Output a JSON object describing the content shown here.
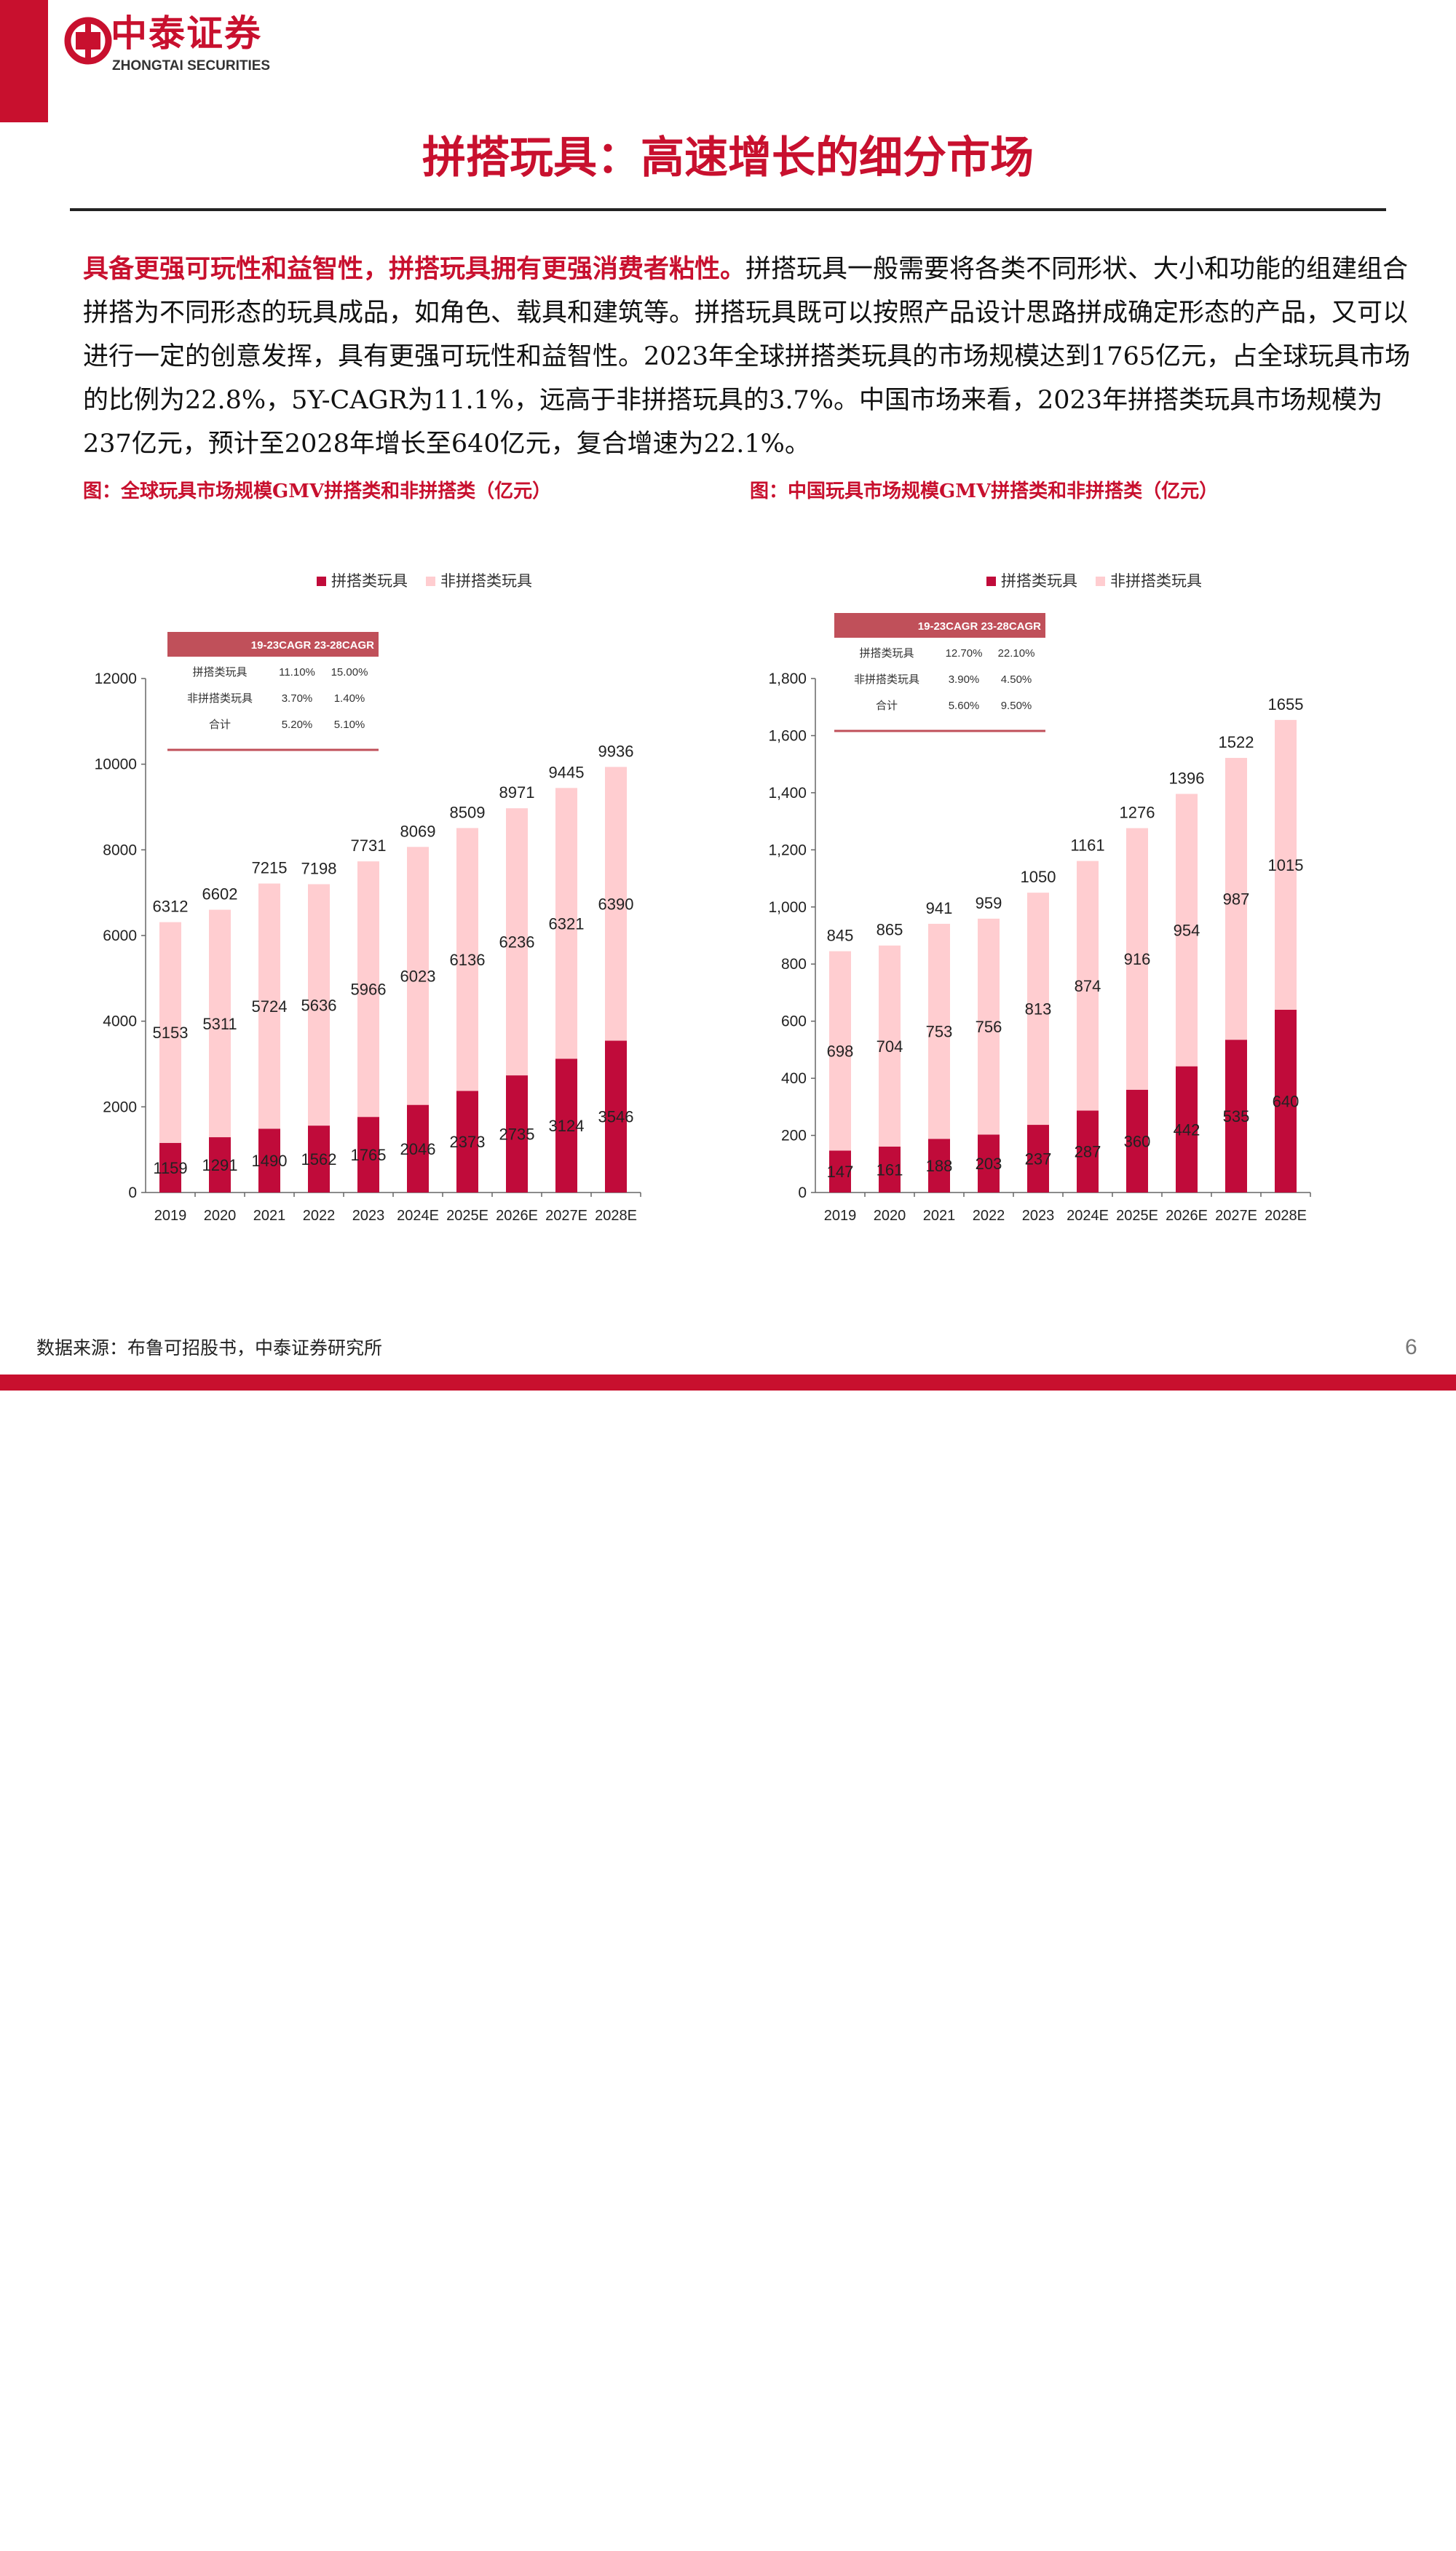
{
  "brand": {
    "name_cn": "中泰证券",
    "name_en": "ZHONGTAI SECURITIES"
  },
  "page": {
    "title": "拼搭玩具：高速增长的细分市场",
    "source": "数据来源：布鲁可招股书，中泰证券研究所",
    "page_number": "6",
    "intro_lead": "具备更强可玩性和益智性，拼搭玩具拥有更强消费者粘性。",
    "intro_body": "拼搭玩具一般需要将各类不同形状、大小和功能的组建组合拼搭为不同形态的玩具成品，如角色、载具和建筑等。拼搭玩具既可以按照产品设计思路拼成确定形态的产品，又可以进行一定的创意发挥，具有更强可玩性和益智性。2023年全球拼搭类玩具的市场规模达到1765亿元，占全球玩具市场的比例为22.8%，5Y-CAGR为11.1%，远高于非拼搭玩具的3.7%。中国市场来看，2023年拼搭类玩具市场规模为237亿元，预计至2028年增长至640亿元，复合增速为22.1%。"
  },
  "colors": {
    "brand_red": "#c8102e",
    "stack_dark": "#c00b3a",
    "stack_light": "#ffcdd0",
    "table_header": "#c0505a"
  },
  "chart_data": [
    {
      "type": "bar",
      "stacked": true,
      "caption": "图：全球玩具市场规模GMV拼搭类和非拼搭类（亿元）",
      "categories": [
        "2019",
        "2020",
        "2021",
        "2022",
        "2023",
        "2024E",
        "2025E",
        "2026E",
        "2027E",
        "2028E"
      ],
      "series": [
        {
          "name": "拼搭类玩具",
          "color": "#c00b3a",
          "values": [
            1159,
            1291,
            1490,
            1562,
            1765,
            2046,
            2373,
            2735,
            3124,
            3546
          ]
        },
        {
          "name": "非拼搭类玩具",
          "color": "#ffcdd0",
          "values": [
            5153,
            5311,
            5724,
            5636,
            5966,
            6023,
            6136,
            6236,
            6321,
            6390
          ]
        }
      ],
      "totals": [
        6312,
        6602,
        7215,
        7198,
        7731,
        8069,
        8509,
        8971,
        9445,
        9936
      ],
      "ylim": [
        0,
        12000
      ],
      "yticks": [
        0,
        2000,
        4000,
        6000,
        8000,
        10000,
        12000
      ],
      "ytick_labels": [
        "0",
        "2000",
        "4000",
        "6000",
        "8000",
        "10000",
        "12000"
      ],
      "legend_position": "top-center",
      "cagr_table": {
        "header": "19-23CAGR 23-28CAGR",
        "rows": [
          {
            "label": "拼搭类玩具",
            "a": "11.10%",
            "b": "15.00%"
          },
          {
            "label": "非拼搭类玩具",
            "a": "3.70%",
            "b": "1.40%"
          },
          {
            "label": "合计",
            "a": "5.20%",
            "b": "5.10%"
          }
        ]
      }
    },
    {
      "type": "bar",
      "stacked": true,
      "caption": "图：中国玩具市场规模GMV拼搭类和非拼搭类（亿元）",
      "categories": [
        "2019",
        "2020",
        "2021",
        "2022",
        "2023",
        "2024E",
        "2025E",
        "2026E",
        "2027E",
        "2028E"
      ],
      "series": [
        {
          "name": "拼搭类玩具",
          "color": "#c00b3a",
          "values": [
            147,
            161,
            188,
            203,
            237,
            287,
            360,
            442,
            535,
            640
          ]
        },
        {
          "name": "非拼搭类玩具",
          "color": "#ffcdd0",
          "values": [
            698,
            704,
            753,
            756,
            813,
            874,
            916,
            954,
            987,
            1015
          ]
        }
      ],
      "totals": [
        845,
        865,
        941,
        959,
        1050,
        1161,
        1276,
        1396,
        1522,
        1655
      ],
      "ylim": [
        0,
        1800
      ],
      "yticks": [
        0,
        200,
        400,
        600,
        800,
        1000,
        1200,
        1400,
        1600,
        1800
      ],
      "ytick_labels": [
        "0",
        "200",
        "400",
        "600",
        "800",
        "1,000",
        "1,200",
        "1,400",
        "1,600",
        "1,800"
      ],
      "legend_position": "top-center",
      "cagr_table": {
        "header": "19-23CAGR 23-28CAGR",
        "rows": [
          {
            "label": "拼搭类玩具",
            "a": "12.70%",
            "b": "22.10%"
          },
          {
            "label": "非拼搭类玩具",
            "a": "3.90%",
            "b": "4.50%"
          },
          {
            "label": "合计",
            "a": "5.60%",
            "b": "9.50%"
          }
        ]
      }
    }
  ]
}
